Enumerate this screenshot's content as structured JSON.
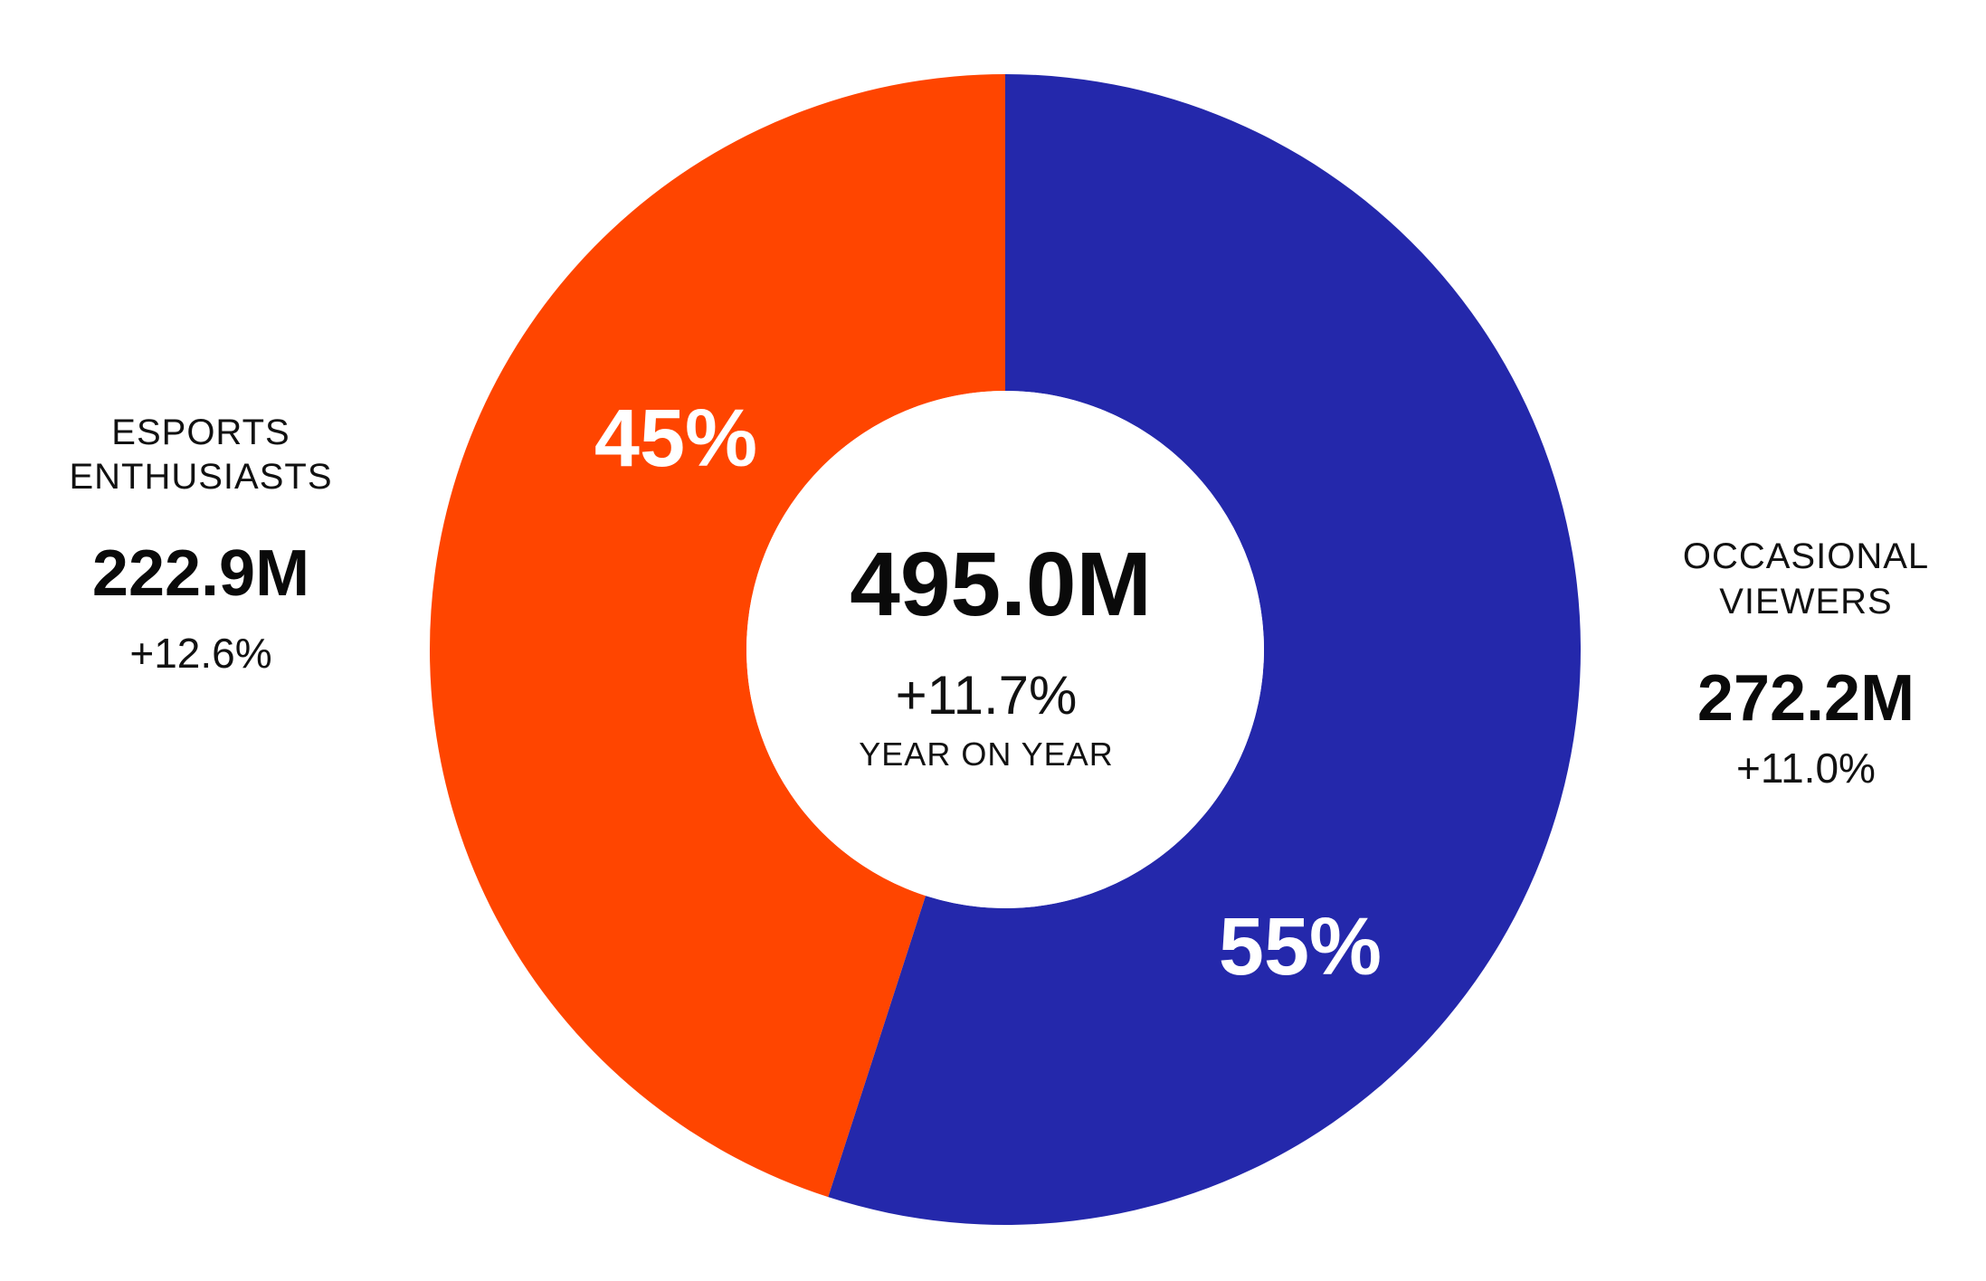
{
  "chart_data": {
    "type": "pie",
    "center": {
      "total": "495.0M",
      "change": "+11.7%",
      "caption": "YEAR ON YEAR"
    },
    "slices": [
      {
        "key": "occasional",
        "label_lines": [
          "OCCASIONAL",
          "VIEWERS"
        ],
        "value": 272.2,
        "value_text": "272.2M",
        "change": "+11.0%",
        "percent": 55,
        "percent_text": "55%",
        "color": "#2428ab"
      },
      {
        "key": "enthusiasts",
        "label_lines": [
          "ESPORTS",
          "ENTHUSIASTS"
        ],
        "value": 222.9,
        "value_text": "222.9M",
        "change": "+12.6%",
        "percent": 45,
        "percent_text": "45%",
        "color": "#ff4500"
      }
    ],
    "background": "#ffffff"
  }
}
